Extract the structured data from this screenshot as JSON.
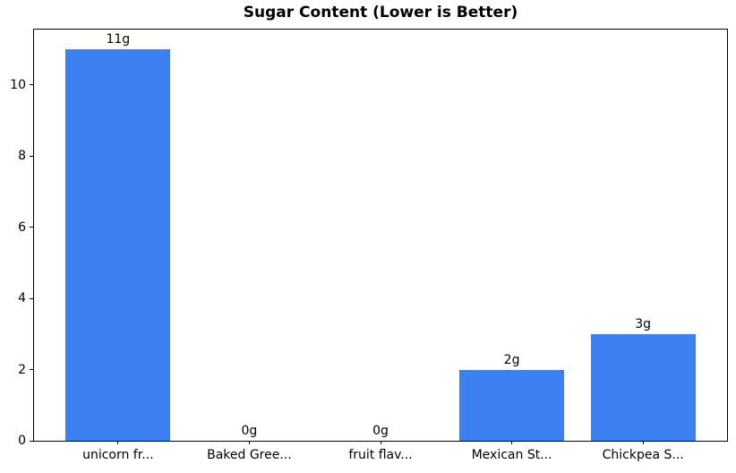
{
  "chart_data": {
    "type": "bar",
    "title": "Sugar Content (Lower is Better)",
    "categories": [
      "unicorn fr...",
      "Baked Gree...",
      "fruit flav...",
      "Mexican St...",
      "Chickpea S..."
    ],
    "values": [
      11,
      0,
      0,
      2,
      3
    ],
    "bar_labels": [
      "11g",
      "0g",
      "0g",
      "2g",
      "3g"
    ],
    "yticks": [
      0,
      2,
      4,
      6,
      8,
      10
    ],
    "ylim": [
      0,
      11.55
    ],
    "xlabel": "",
    "ylabel": "",
    "grid": false,
    "legend": null,
    "bar_color": "#3d80f2",
    "text_color": "#000000",
    "background_color": "#ffffff"
  }
}
